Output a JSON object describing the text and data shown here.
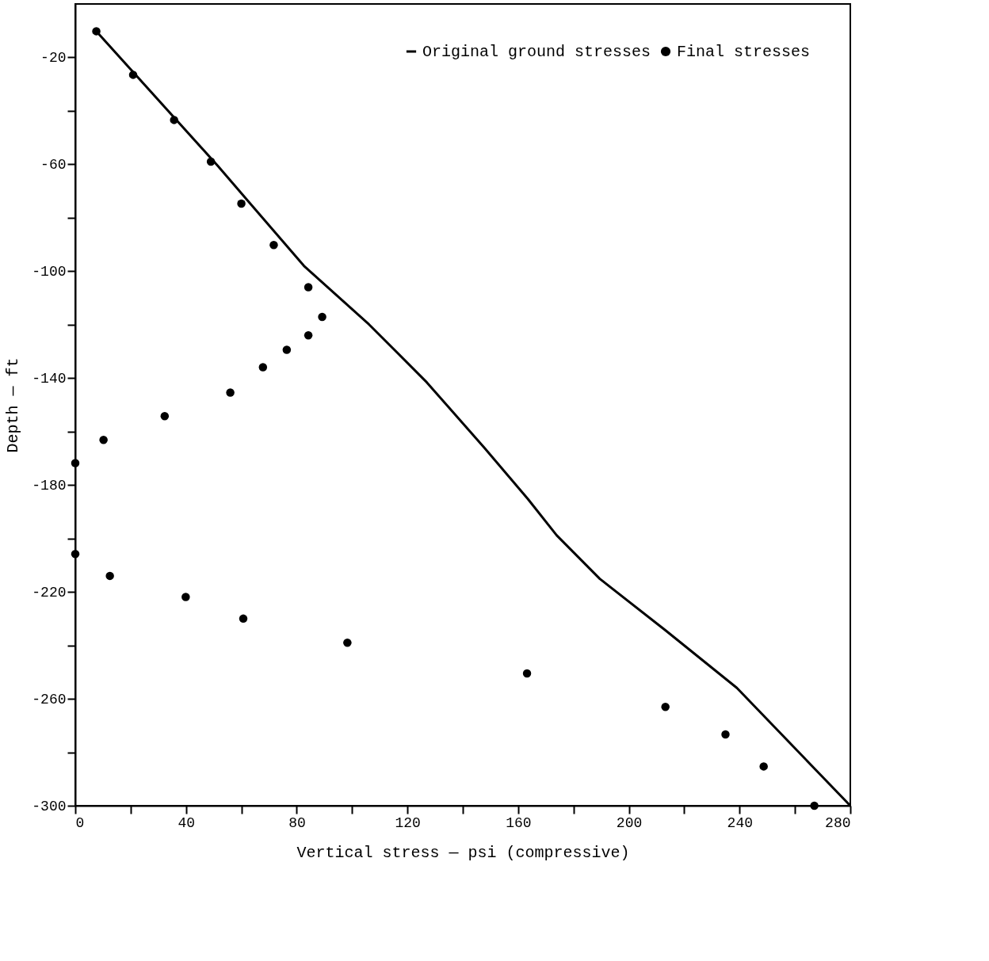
{
  "chart_data": {
    "type": "scatter",
    "xlabel": "Vertical stress — psi (compressive)",
    "ylabel": "Depth — ft",
    "xlim": [
      0,
      280
    ],
    "ylim": [
      -300,
      0
    ],
    "xticks": [
      0,
      {
        "value": 20,
        "label": null
      },
      40,
      {
        "value": 60,
        "label": null
      },
      80,
      {
        "value": 100,
        "label": null
      },
      120,
      {
        "value": 140,
        "label": null
      },
      160,
      {
        "value": 180,
        "label": null
      },
      200,
      {
        "value": 220,
        "label": null
      },
      240,
      {
        "value": 260,
        "label": null
      },
      280
    ],
    "yticks": [
      {
        "value": -300,
        "label": "-300"
      },
      {
        "value": -280,
        "label": null
      },
      -260,
      {
        "value": -240,
        "label": null
      },
      -220,
      {
        "value": -200,
        "label": null
      },
      -180,
      {
        "value": -160,
        "label": null
      },
      -140,
      {
        "value": -120,
        "label": null
      },
      -100,
      {
        "value": -80,
        "label": null
      },
      -60,
      {
        "value": -40,
        "label": null
      },
      -20
    ],
    "grid": false,
    "legend": "top right",
    "series": [
      {
        "name": "Original ground stresses",
        "type": "line",
        "color": "#000000",
        "marker": "none",
        "line_style": "solid",
        "x": [
          7.6,
          51.4,
          82.6,
          106.1,
          127,
          147.8,
          163.5,
          173.9,
          189.5,
          213,
          239,
          280
        ],
        "values": [
          -10.2,
          -60.5,
          -98,
          -119.9,
          -141.6,
          -166.1,
          -185.2,
          -198.8,
          -215.1,
          -234.2,
          -255.9,
          -300
        ]
      },
      {
        "name": "Final stresses",
        "color": "#000000",
        "marker": "circle",
        "x": [
          7.6,
          20.9,
          35.7,
          49,
          60,
          71.7,
          84.2,
          89.2,
          84.2,
          76.4,
          67.8,
          56,
          32.3,
          10.2,
          0,
          0,
          12.5,
          39.9,
          60.7,
          98.3,
          163.2,
          213.2,
          234.9,
          248.7,
          267
        ],
        "values": [
          -10.2,
          -26.5,
          -43.4,
          -59,
          -74.7,
          -90.2,
          -106,
          -117.1,
          -124,
          -129.4,
          -135.9,
          -145.4,
          -154.2,
          -163.1,
          -171.8,
          -205.8,
          -214,
          -221.9,
          -230,
          -239,
          -250.5,
          -263,
          -273.3,
          -285.3,
          -300
        ]
      }
    ]
  }
}
